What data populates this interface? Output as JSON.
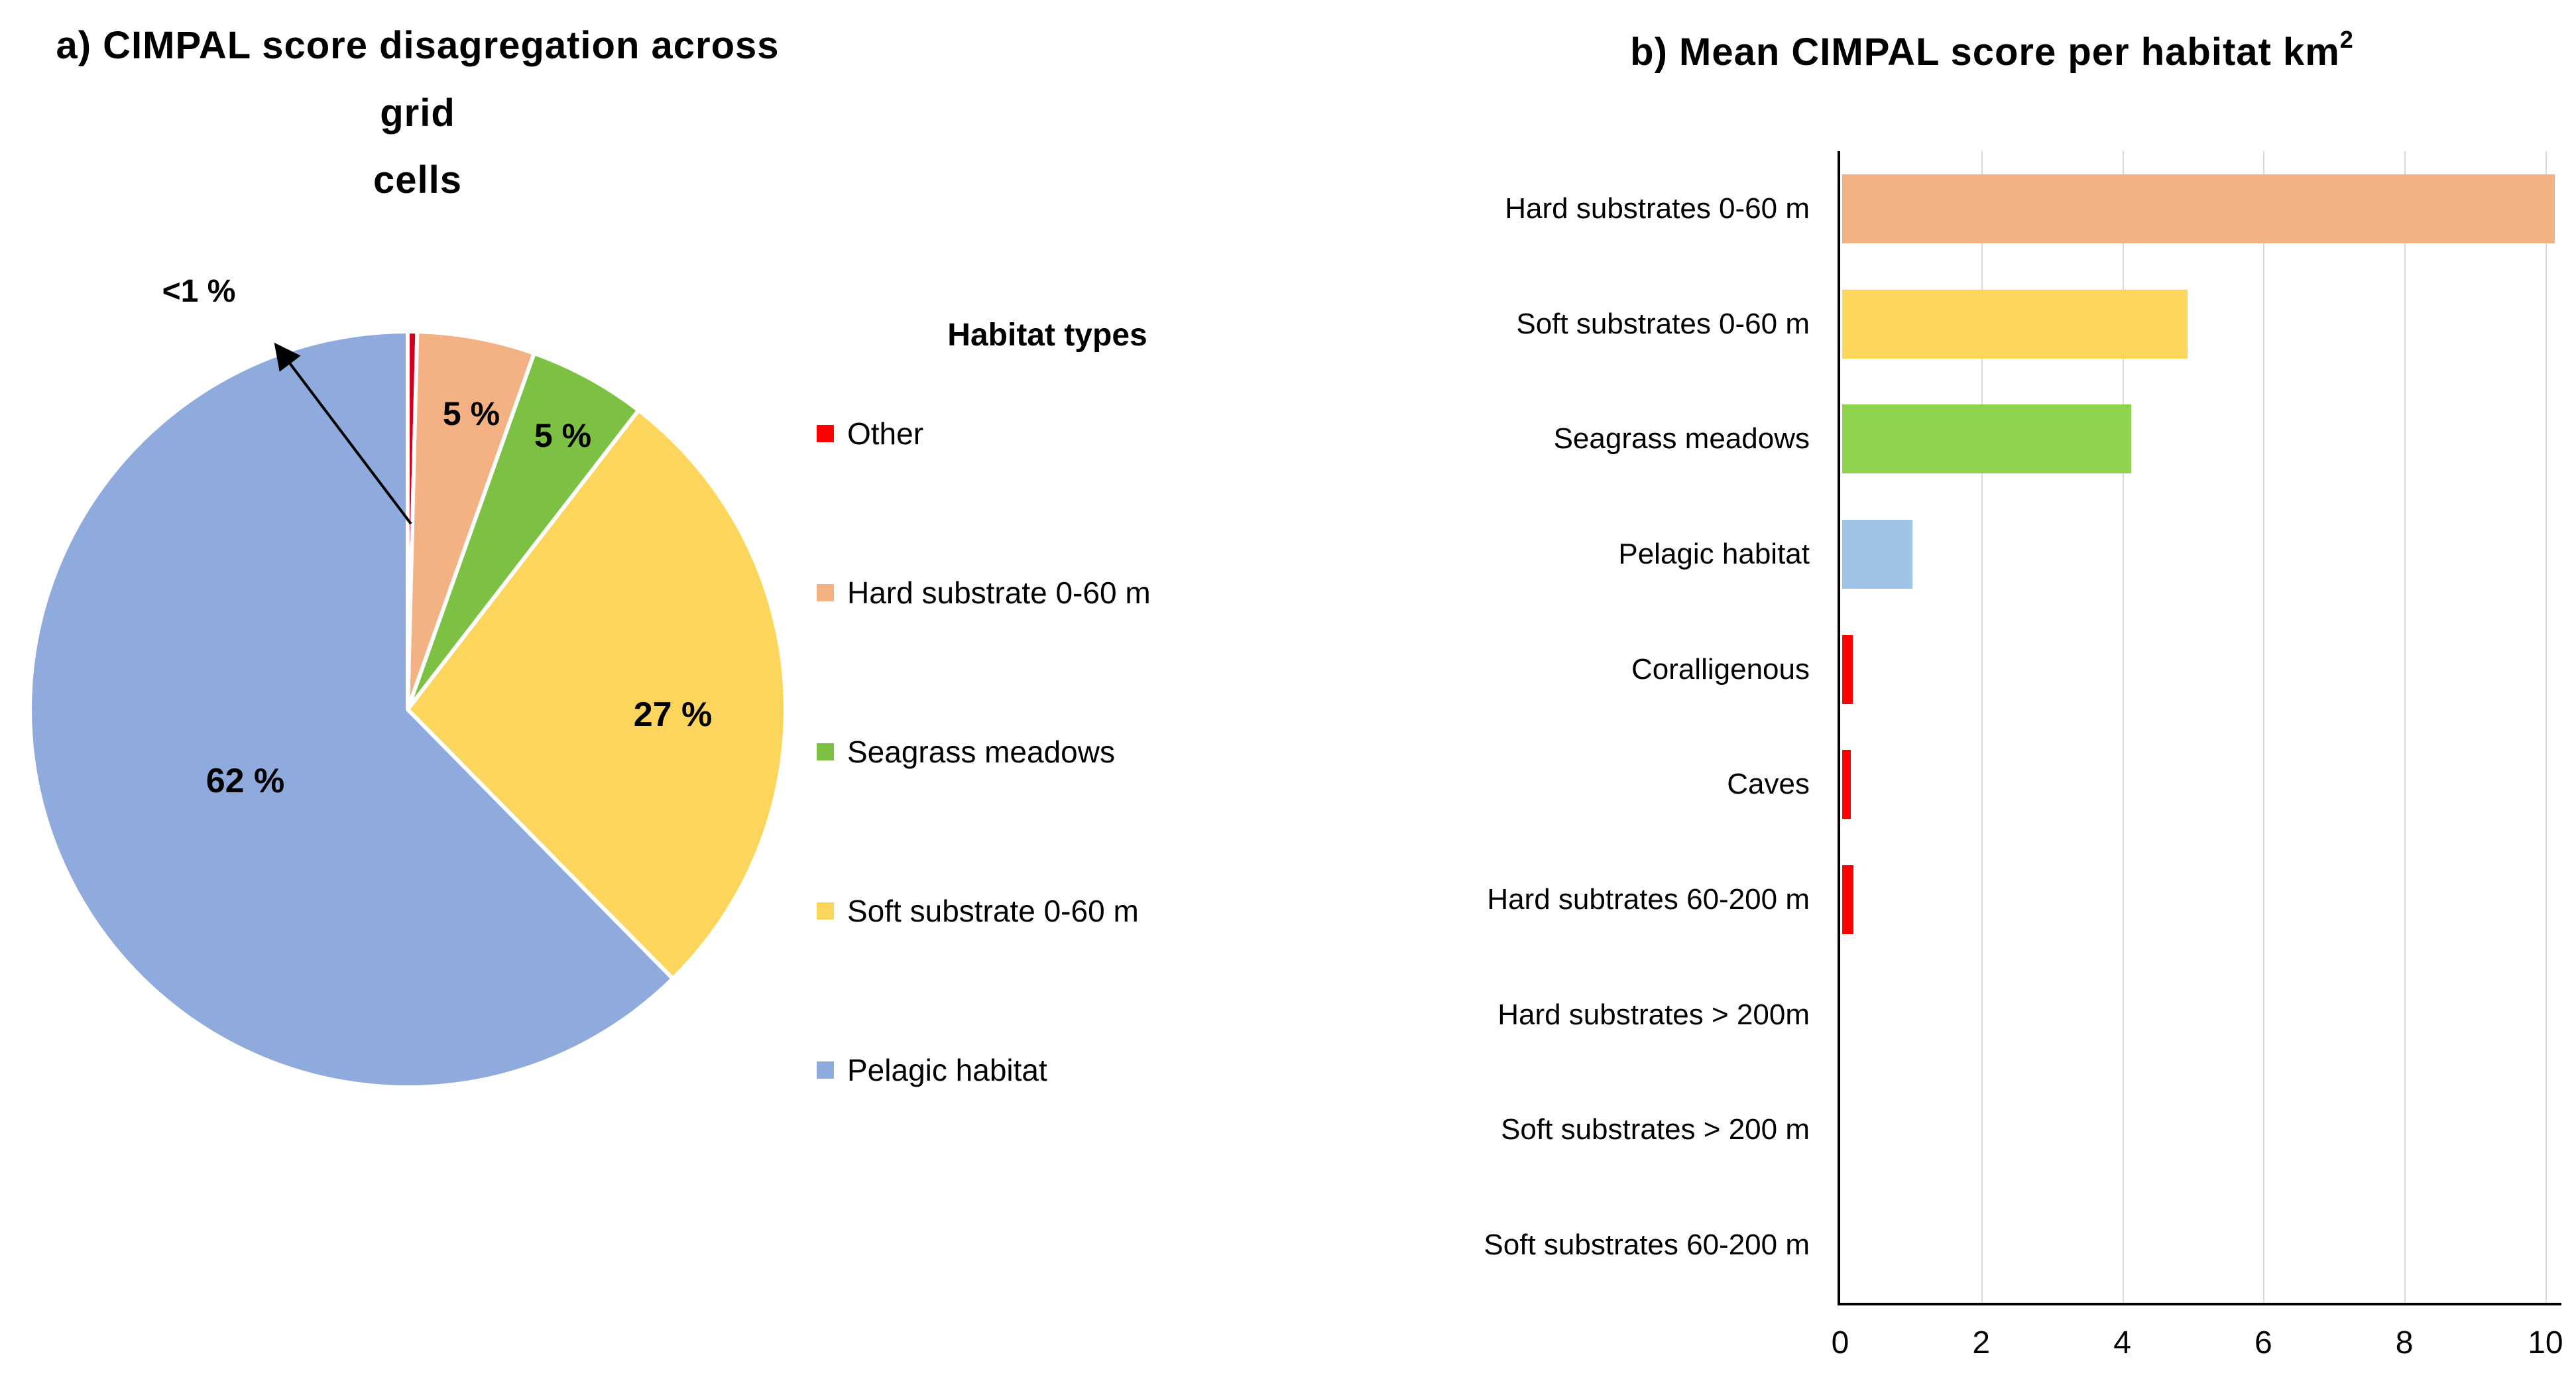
{
  "page": {
    "background": "#FFFFFF"
  },
  "panel_a": {
    "title_line1": "a) CIMPAL score disagregation across grid",
    "title_line2": "cells",
    "legend_title": "Habitat types",
    "callout_label": "<1 %"
  },
  "panel_b": {
    "title": "b) Mean CIMPAL score per habitat km",
    "title_superscript": "2"
  },
  "chart_data": [
    {
      "type": "pie",
      "title": "a) CIMPAL score disagregation across grid cells",
      "legend_title": "Habitat types",
      "legend_position": "right",
      "start_angle_deg": 0,
      "direction": "clockwise",
      "slices": [
        {
          "label": "Other",
          "value_pct": 0.4,
          "display": "<1 %",
          "color": "#D0021B",
          "legend_color": "#FF0000",
          "callout": true
        },
        {
          "label": "Hard substrate 0-60 m",
          "value_pct": 5,
          "display": "5 %",
          "color": "#F4B183"
        },
        {
          "label": "Seagrass meadows",
          "value_pct": 5,
          "display": "5 %",
          "color": "#7CC143"
        },
        {
          "label": "Soft substrate 0-60 m",
          "value_pct": 27,
          "display": "27 %",
          "color": "#FCD65C"
        },
        {
          "label": "Pelagic habitat",
          "value_pct": 62,
          "display": "62 %",
          "color": "#8FAADC"
        }
      ]
    },
    {
      "type": "bar",
      "orientation": "horizontal",
      "title": "b) Mean CIMPAL score per habitat km²",
      "categories": [
        "Hard substrates 0-60 m",
        "Soft substrates 0-60 m",
        "Seagrass meadows",
        "Pelagic habitat",
        "Coralligenous",
        "Caves",
        "Hard subtrates 60-200 m",
        "Hard substrates > 200m",
        "Soft substrates > 200 m",
        "Soft substrates 60-200 m"
      ],
      "values": [
        10.1,
        4.9,
        4.1,
        1.0,
        0.15,
        0.12,
        0.16,
        0,
        0,
        0
      ],
      "colors": [
        "#F4B183",
        "#FCD65C",
        "#8DD34D",
        "#9DC3E6",
        "#FF0000",
        "#FF0000",
        "#FF0000",
        "#FF0000",
        "#FF0000",
        "#FF0000"
      ],
      "xlim": [
        0,
        10
      ],
      "xticks": [
        0,
        2,
        4,
        6,
        8,
        10
      ],
      "grid": "vertical",
      "gridline_color": "#D9D9D9",
      "axis_color": "#000000"
    }
  ]
}
